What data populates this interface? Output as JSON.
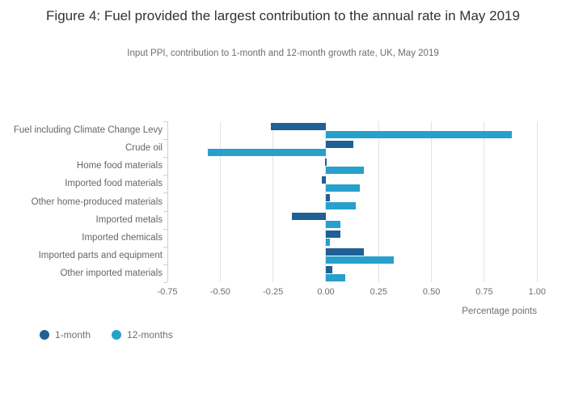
{
  "chart_data": {
    "type": "bar",
    "orientation": "horizontal",
    "title": "Figure 4: Fuel provided the largest contribution to the annual rate in May 2019",
    "subtitle": "Input PPI, contribution to 1-month and 12-month growth rate, UK, May 2019",
    "categories": [
      "Fuel including Climate Change Levy",
      "Crude oil",
      "Home food materials",
      "Imported food materials",
      "Other home-produced materials",
      "Imported metals",
      "Imported chemicals",
      "Imported parts and equipment",
      "Other imported materials"
    ],
    "series": [
      {
        "name": "1-month",
        "color": "#206095",
        "values": [
          -0.26,
          0.13,
          0.0,
          -0.02,
          0.02,
          -0.16,
          0.07,
          0.18,
          0.03
        ]
      },
      {
        "name": "12-months",
        "color": "#27A0CC",
        "values": [
          0.88,
          -0.56,
          0.18,
          0.16,
          0.14,
          0.07,
          0.02,
          0.32,
          0.09
        ]
      }
    ],
    "xlabel": "Percentage points",
    "xlim": [
      -0.75,
      1.0
    ],
    "xticks": [
      -0.75,
      -0.5,
      -0.25,
      0,
      0.25,
      0.5,
      0.75,
      1.0
    ],
    "xtick_labels": [
      "-0.75",
      "-0.50",
      "-0.25",
      "0.00",
      "0.25",
      "0.50",
      "0.75",
      "1.00"
    ],
    "grid": true,
    "legend_position": "bottom-left"
  },
  "colors": {
    "grid": "#e2e2e2",
    "axis": "#c9d2de",
    "title_text": "#333133",
    "muted_text": "#6e6e71",
    "category_text": "#666666",
    "background": "#ffffff"
  }
}
